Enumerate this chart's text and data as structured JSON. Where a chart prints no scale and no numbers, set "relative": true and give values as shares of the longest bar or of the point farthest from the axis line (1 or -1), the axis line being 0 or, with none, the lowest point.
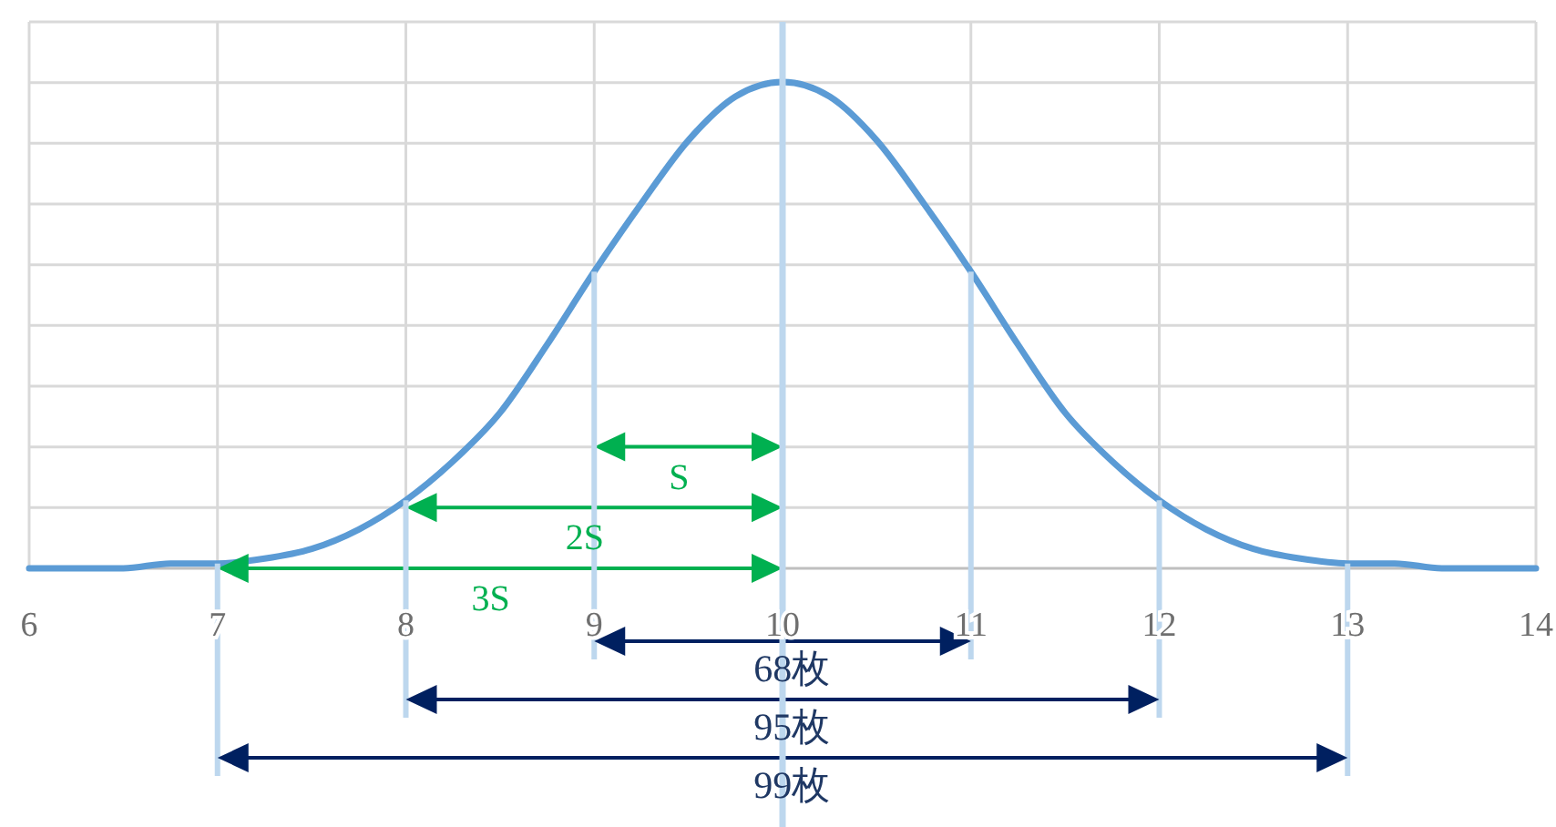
{
  "chart_data": {
    "type": "line",
    "relative": true,
    "tick_labels": "x",
    "grid": true,
    "x": [
      6,
      6.25,
      6.5,
      6.75,
      7,
      7.25,
      7.5,
      7.75,
      8,
      8.25,
      8.5,
      8.75,
      9,
      9.25,
      9.5,
      9.75,
      10,
      10.25,
      10.5,
      10.75,
      11,
      11.25,
      11.5,
      11.75,
      12,
      12.25,
      12.5,
      12.75,
      13,
      13.25,
      13.5,
      13.75,
      14
    ],
    "series": [
      {
        "color": "#5b9bd5",
        "values": [
          0,
          0,
          0,
          0.01,
          0.01,
          0.02,
          0.04,
          0.08,
          0.14,
          0.22,
          0.32,
          0.46,
          0.61,
          0.75,
          0.88,
          0.97,
          1,
          0.97,
          0.88,
          0.75,
          0.61,
          0.46,
          0.32,
          0.22,
          0.14,
          0.08,
          0.04,
          0.02,
          0.01,
          0.01,
          0,
          0,
          0
        ]
      }
    ],
    "xlim": [
      6,
      14
    ],
    "xticks": [
      6,
      7,
      8,
      9,
      10,
      11,
      12,
      13,
      14
    ],
    "ref_lines": [
      {
        "axis": "x",
        "value": 10,
        "color": "#bdd7ee"
      }
    ],
    "annotations": [
      "S",
      "2S",
      "3S",
      "68枚",
      "95枚",
      "99枚"
    ]
  }
}
